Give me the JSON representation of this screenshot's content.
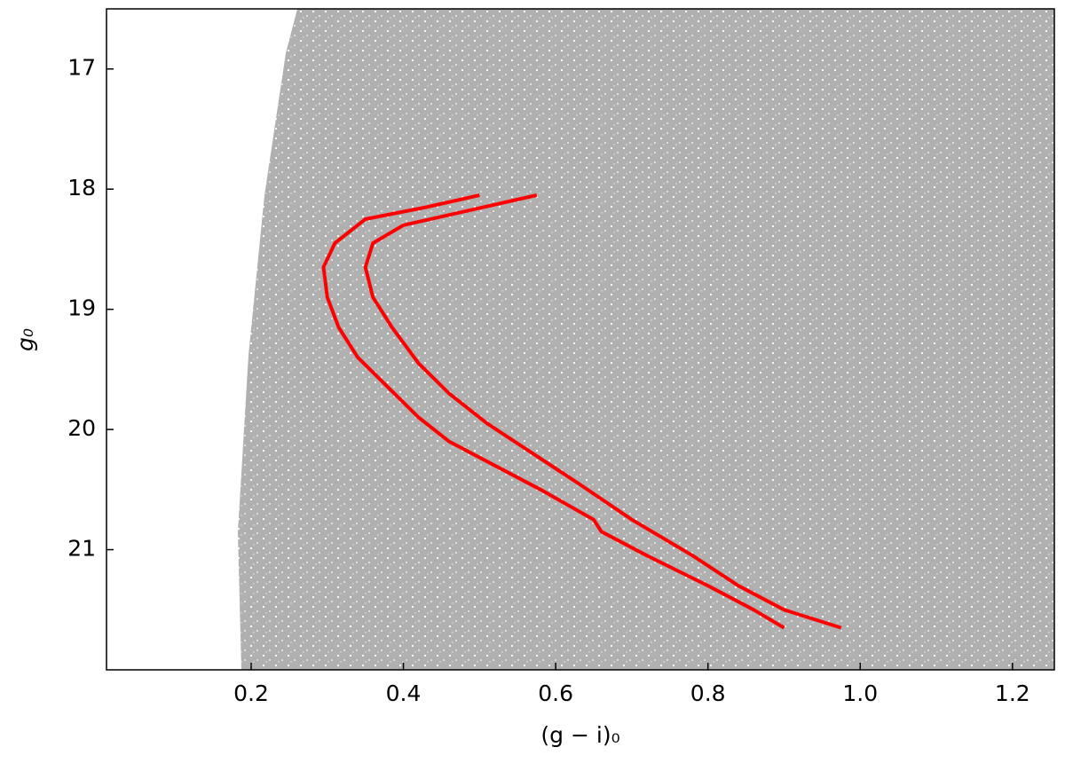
{
  "chart_data": {
    "type": "line",
    "xlabel": "(g − i)₀",
    "ylabel": "g₀",
    "xlim": [
      0.01,
      1.255
    ],
    "ylim": [
      22.0,
      16.5
    ],
    "xticks": [
      0.2,
      0.4,
      0.6,
      0.8,
      {
        "value": 1,
        "label": "1.0"
      },
      1.2
    ],
    "yticks": [
      17,
      18,
      19,
      20,
      21
    ],
    "series": [
      {
        "color": "#ff0000",
        "x": [
          0.5,
          0.43,
          0.35,
          0.31,
          0.295,
          0.3,
          0.315,
          0.34,
          0.38,
          0.42,
          0.46,
          0.52,
          0.58,
          0.65,
          0.66,
          0.72,
          0.8,
          0.86,
          0.9
        ],
        "values": [
          18.05,
          18.15,
          18.25,
          18.45,
          18.65,
          18.9,
          19.15,
          19.4,
          19.65,
          19.9,
          20.1,
          20.3,
          20.5,
          20.75,
          20.85,
          21.05,
          21.3,
          21.5,
          21.65
        ]
      },
      {
        "color": "#ff0000",
        "x": [
          0.575,
          0.47,
          0.4,
          0.36,
          0.35,
          0.36,
          0.385,
          0.42,
          0.46,
          0.51,
          0.57,
          0.63,
          0.7,
          0.78,
          0.84,
          0.9,
          0.975
        ],
        "values": [
          18.05,
          18.2,
          18.3,
          18.45,
          18.65,
          18.9,
          19.15,
          19.45,
          19.7,
          19.95,
          20.2,
          20.45,
          20.75,
          21.05,
          21.3,
          21.5,
          21.65
        ]
      }
    ]
  }
}
